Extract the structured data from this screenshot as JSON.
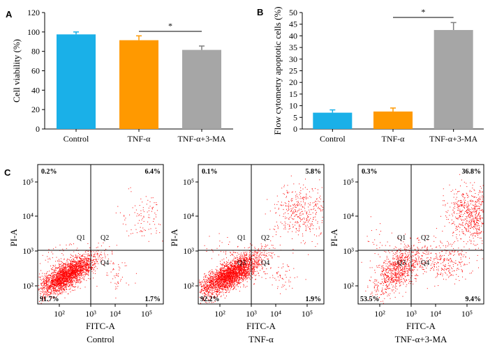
{
  "panel_labels": [
    "A",
    "B",
    "C"
  ],
  "chart_data": [
    {
      "type": "bar",
      "panel": "A",
      "categories": [
        "Control",
        "TNF-α",
        "TNF-α+3-MA"
      ],
      "values": [
        97.5,
        91.5,
        81.5
      ],
      "errors": [
        2.5,
        4.5,
        4.0
      ],
      "colors": [
        "#1ab0e8",
        "#ff9900",
        "#a6a6a6"
      ],
      "ylabel": "Cell viability (%)",
      "ylim": [
        0,
        120
      ],
      "yticks": [
        0,
        20,
        40,
        60,
        80,
        100,
        120
      ],
      "significance": {
        "from": 1,
        "to": 2,
        "label": "*"
      }
    },
    {
      "type": "bar",
      "panel": "B",
      "categories": [
        "Control",
        "TNF-α",
        "TNF-α+3-MA"
      ],
      "values": [
        7.0,
        7.5,
        42.5
      ],
      "errors": [
        1.2,
        1.5,
        3.2
      ],
      "colors": [
        "#1ab0e8",
        "#ff9900",
        "#a6a6a6"
      ],
      "ylabel": "Flow cytometry apoptotic cells (%)",
      "ylim": [
        0,
        50
      ],
      "yticks": [
        0,
        5,
        10,
        15,
        20,
        25,
        30,
        35,
        40,
        45,
        50
      ],
      "significance": {
        "from": 1,
        "to": 2,
        "label": "*"
      }
    },
    {
      "type": "scatter",
      "panel": "C",
      "xlabel": "FITC-A",
      "ylabel": "PI-A",
      "scale": "log",
      "xticks": [
        "10²",
        "10³",
        "10⁴",
        "10⁵"
      ],
      "yticks": [
        "10²",
        "10³",
        "10⁴",
        "10⁵"
      ],
      "quadrant_labels": [
        "Q1",
        "Q2",
        "Q3",
        "Q4"
      ],
      "plots": [
        {
          "name": "Control",
          "q1": "0.2%",
          "q2": "6.4%",
          "q3": "91.7%",
          "q4": "1.7%"
        },
        {
          "name": "TNF-α",
          "q1": "0.1%",
          "q2": "5.8%",
          "q3": "92.2%",
          "q4": "1.9%"
        },
        {
          "name": "TNF-α+3-MA",
          "q1": "0.3%",
          "q2": "36.8%",
          "q3": "53.5%",
          "q4": "9.4%"
        }
      ]
    }
  ]
}
